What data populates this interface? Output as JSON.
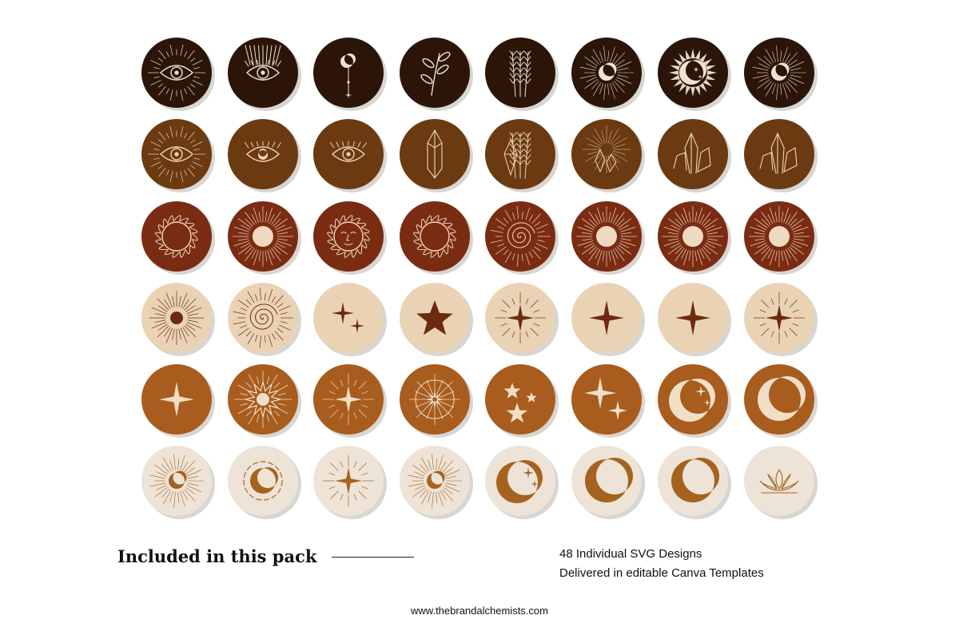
{
  "palette": {
    "rows": [
      "#2b1509",
      "#6b3a11",
      "#7a2c12",
      "#ead3b5",
      "#a85c1e",
      "#ede3d6"
    ],
    "icons": [
      "#efe3cf",
      "#ecd6b8",
      "#f0d9c2",
      "#6e2a10",
      "#f0dfc6",
      "#a5631f"
    ],
    "shadow": "#d8d6d2"
  },
  "icons": [
    [
      "eye-rays-icon",
      "eye-crown-icon",
      "crescent-pendant-icon",
      "plant-sprig-icon",
      "wheat-icon",
      "crescent-rays-icon",
      "crescent-sun-icon",
      "crescent-rays-icon"
    ],
    [
      "eye-rays-icon",
      "eye-crescent-icon",
      "eye-lashes-icon",
      "crystal-icon",
      "crystal-wheat-icon",
      "crystal-rays-icon",
      "crystal-cluster-icon",
      "crystal-cluster-icon"
    ],
    [
      "sun-flame-icon",
      "sun-rays-icon",
      "sun-face-icon",
      "sun-flame-icon",
      "spiral-sun-icon",
      "sun-rays-icon",
      "sun-rays-icon",
      "sun-rays-icon"
    ],
    [
      "dot-rays-icon",
      "spiral-sun-icon",
      "two-stars-icon",
      "star-icon",
      "sparkle-rays-icon",
      "sparkle-icon",
      "sparkle-icon",
      "sparkle-rays-icon"
    ],
    [
      "sparkle-icon",
      "star-burst-icon",
      "sparkle-rays-icon",
      "compass-star-icon",
      "three-stars-icon",
      "two-sparkles-icon",
      "crescent-stars-icon",
      "crescent-icon"
    ],
    [
      "crescent-rays-icon",
      "crescent-circle-icon",
      "sparkle-rays-icon",
      "crescent-rays-icon",
      "crescent-stars-icon",
      "crescent-icon",
      "crescent-icon",
      "lotus-icon"
    ]
  ],
  "footer": {
    "title": "Included in this pack",
    "feature_1": "48 Individual SVG Designs",
    "feature_2": "Delivered in editable Canva Templates",
    "website": "www.thebrandalchemists.com"
  }
}
